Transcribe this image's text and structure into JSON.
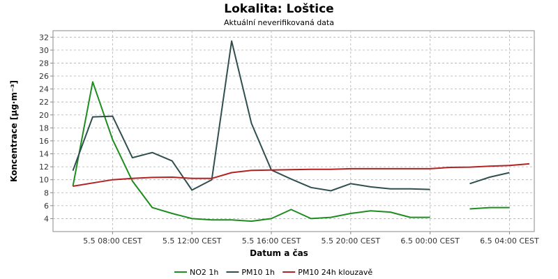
{
  "chart_data": {
    "type": "line",
    "title": "Lokalita: Loštice",
    "subtitle": "Aktuální neverifikovaná data",
    "xlabel": "Datum a čas",
    "ylabel": "Koncentrace [µg·m⁻³]",
    "ylim": [
      2,
      33
    ],
    "xlim": [
      "2024-05-05 05:00",
      "2024-05-06 05:15"
    ],
    "y_ticks": [
      4,
      6,
      8,
      10,
      12,
      14,
      16,
      18,
      20,
      22,
      24,
      26,
      28,
      30,
      32
    ],
    "x_ticks": [
      {
        "t": "2024-05-05 08:00",
        "label": "5.5 08:00 CEST"
      },
      {
        "t": "2024-05-05 12:00",
        "label": "5.5 12:00 CEST"
      },
      {
        "t": "2024-05-05 16:00",
        "label": "5.5 16:00 CEST"
      },
      {
        "t": "2024-05-05 20:00",
        "label": "5.5 20:00 CEST"
      },
      {
        "t": "2024-05-06 00:00",
        "label": "6.5 00:00 CEST"
      },
      {
        "t": "2024-05-06 04:00",
        "label": "6.5 04:00 CEST"
      }
    ],
    "grid": true,
    "legend_position": "bottom",
    "series": [
      {
        "name": "NO2 1h",
        "color": "#1e8c1e",
        "points": [
          [
            "2024-05-05 06:00",
            9.0
          ],
          [
            "2024-05-05 07:00",
            25.1
          ],
          [
            "2024-05-05 08:00",
            16.2
          ],
          [
            "2024-05-05 09:00",
            9.8
          ],
          [
            "2024-05-05 10:00",
            5.7
          ],
          [
            "2024-05-05 11:00",
            4.8
          ],
          [
            "2024-05-05 12:00",
            4.0
          ],
          [
            "2024-05-05 13:00",
            3.8
          ],
          [
            "2024-05-05 14:00",
            3.8
          ],
          [
            "2024-05-05 15:00",
            3.6
          ],
          [
            "2024-05-05 16:00",
            4.0
          ],
          [
            "2024-05-05 17:00",
            5.4
          ],
          [
            "2024-05-05 18:00",
            4.0
          ],
          [
            "2024-05-05 19:00",
            4.2
          ],
          [
            "2024-05-05 20:00",
            4.8
          ],
          [
            "2024-05-05 21:00",
            5.2
          ],
          [
            "2024-05-05 22:00",
            5.0
          ],
          [
            "2024-05-05 23:00",
            4.2
          ],
          [
            "2024-05-06 00:00",
            4.2
          ],
          null,
          [
            "2024-05-06 02:00",
            5.5
          ],
          [
            "2024-05-06 03:00",
            5.7
          ],
          [
            "2024-05-06 04:00",
            5.7
          ]
        ]
      },
      {
        "name": "PM10 1h",
        "color": "#2f4f4f",
        "points": [
          [
            "2024-05-05 06:00",
            11.4
          ],
          [
            "2024-05-05 07:00",
            19.7
          ],
          [
            "2024-05-05 08:00",
            19.8
          ],
          [
            "2024-05-05 09:00",
            13.4
          ],
          [
            "2024-05-05 10:00",
            14.2
          ],
          [
            "2024-05-05 11:00",
            12.9
          ],
          [
            "2024-05-05 12:00",
            8.4
          ],
          [
            "2024-05-05 13:00",
            10.0
          ],
          [
            "2024-05-05 14:00",
            31.4
          ],
          [
            "2024-05-05 15:00",
            18.7
          ],
          [
            "2024-05-05 16:00",
            11.5
          ],
          [
            "2024-05-05 17:00",
            10.1
          ],
          [
            "2024-05-05 18:00",
            8.8
          ],
          [
            "2024-05-05 19:00",
            8.3
          ],
          [
            "2024-05-05 20:00",
            9.4
          ],
          [
            "2024-05-05 21:00",
            8.9
          ],
          [
            "2024-05-05 22:00",
            8.6
          ],
          [
            "2024-05-05 23:00",
            8.6
          ],
          [
            "2024-05-06 00:00",
            8.5
          ],
          null,
          [
            "2024-05-06 02:00",
            9.4
          ],
          [
            "2024-05-06 03:00",
            10.4
          ],
          [
            "2024-05-06 04:00",
            11.1
          ]
        ]
      },
      {
        "name": "PM10 24h klouzavě",
        "color": "#b22222",
        "points": [
          [
            "2024-05-05 06:00",
            9.0
          ],
          [
            "2024-05-05 07:00",
            9.5
          ],
          [
            "2024-05-05 08:00",
            10.0
          ],
          [
            "2024-05-05 09:00",
            10.2
          ],
          [
            "2024-05-05 10:00",
            10.35
          ],
          [
            "2024-05-05 11:00",
            10.4
          ],
          [
            "2024-05-05 12:00",
            10.2
          ],
          [
            "2024-05-05 13:00",
            10.2
          ],
          [
            "2024-05-05 14:00",
            11.1
          ],
          [
            "2024-05-05 15:00",
            11.45
          ],
          [
            "2024-05-05 16:00",
            11.5
          ],
          [
            "2024-05-05 17:00",
            11.55
          ],
          [
            "2024-05-05 18:00",
            11.6
          ],
          [
            "2024-05-05 19:00",
            11.6
          ],
          [
            "2024-05-05 20:00",
            11.7
          ],
          [
            "2024-05-05 21:00",
            11.7
          ],
          [
            "2024-05-05 22:00",
            11.7
          ],
          [
            "2024-05-05 23:00",
            11.7
          ],
          [
            "2024-05-06 00:00",
            11.7
          ],
          [
            "2024-05-06 01:00",
            11.9
          ],
          [
            "2024-05-06 02:00",
            11.95
          ],
          [
            "2024-05-06 03:00",
            12.1
          ],
          [
            "2024-05-06 04:00",
            12.2
          ],
          [
            "2024-05-06 05:00",
            12.45
          ]
        ]
      }
    ]
  }
}
